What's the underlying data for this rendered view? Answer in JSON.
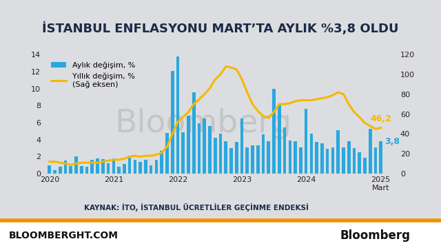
{
  "chart_data": {
    "type": "bar",
    "title": "İSTANBUL ENFLASYONU MART’TA AYLIK %3,8 OLDU",
    "categories": [
      "2020",
      null,
      null,
      null,
      null,
      null,
      null,
      null,
      null,
      null,
      null,
      null,
      "2021",
      null,
      null,
      null,
      null,
      null,
      null,
      null,
      null,
      null,
      null,
      null,
      "2022",
      null,
      null,
      null,
      null,
      null,
      null,
      null,
      null,
      null,
      null,
      null,
      "2023",
      null,
      null,
      null,
      null,
      null,
      null,
      null,
      null,
      null,
      null,
      null,
      "2024",
      null,
      null,
      null,
      null,
      null,
      null,
      null,
      null,
      null,
      null,
      null,
      null,
      null,
      "2025\nMart"
    ],
    "series": [
      {
        "name": "Aylık değişim, %",
        "type": "bar",
        "color": "#29a8e0",
        "values": [
          1.0,
          0.4,
          0.8,
          1.5,
          0.9,
          2.0,
          0.9,
          0.8,
          1.6,
          1.8,
          1.7,
          1.2,
          1.8,
          0.8,
          1.1,
          2.1,
          1.6,
          1.4,
          1.6,
          1.0,
          1.6,
          2.7,
          4.8,
          12.1,
          13.8,
          4.9,
          6.8,
          9.6,
          5.9,
          6.5,
          5.6,
          4.2,
          4.7,
          3.8,
          3.0,
          3.7,
          6.5,
          3.1,
          3.3,
          3.3,
          4.6,
          3.8,
          10.0,
          8.1,
          5.4,
          3.9,
          3.8,
          3.1,
          7.6,
          4.7,
          3.7,
          3.6,
          2.9,
          3.1,
          5.1,
          3.1,
          3.8,
          3.0,
          2.5,
          1.9,
          5.3,
          3.1,
          3.8
        ]
      },
      {
        "name": "Yıllık değişim, %\n(Sağ eksen)",
        "type": "line",
        "color": "#f5b800",
        "axis": "y2",
        "values": [
          12,
          12,
          11,
          10,
          9,
          10,
          11,
          11,
          11,
          11,
          12,
          13,
          14,
          14,
          15,
          17,
          18,
          17,
          18,
          18,
          19,
          21,
          27,
          40,
          52,
          57,
          62,
          70,
          75,
          80,
          86,
          95,
          100,
          108,
          107,
          105,
          95,
          82,
          70,
          63,
          58,
          56,
          62,
          70,
          70,
          71,
          73,
          74,
          74,
          74,
          75,
          76,
          77,
          79,
          82,
          80,
          70,
          62,
          57,
          51,
          48,
          45,
          46.2
        ]
      }
    ],
    "ylim": [
      0,
      14
    ],
    "yticks": [
      0,
      2,
      4,
      6,
      8,
      10,
      12,
      14
    ],
    "y2lim": [
      0,
      120
    ],
    "y2ticks": [
      0,
      20,
      40,
      60,
      80,
      100,
      120
    ],
    "grid": false,
    "legend": "upper left",
    "annotations": [
      {
        "text": "46,2",
        "series": 1,
        "index": 62
      },
      {
        "text": "3,8",
        "series": 0,
        "index": 62
      }
    ],
    "source": "KAYNAK: İTO, İSTANBUL ÜCRETLİLER GEÇİNME ENDEKSİ",
    "watermark": "Bloomberg",
    "footer": [
      "BLOOMBERGHT.COM",
      "Bloomberg"
    ]
  }
}
